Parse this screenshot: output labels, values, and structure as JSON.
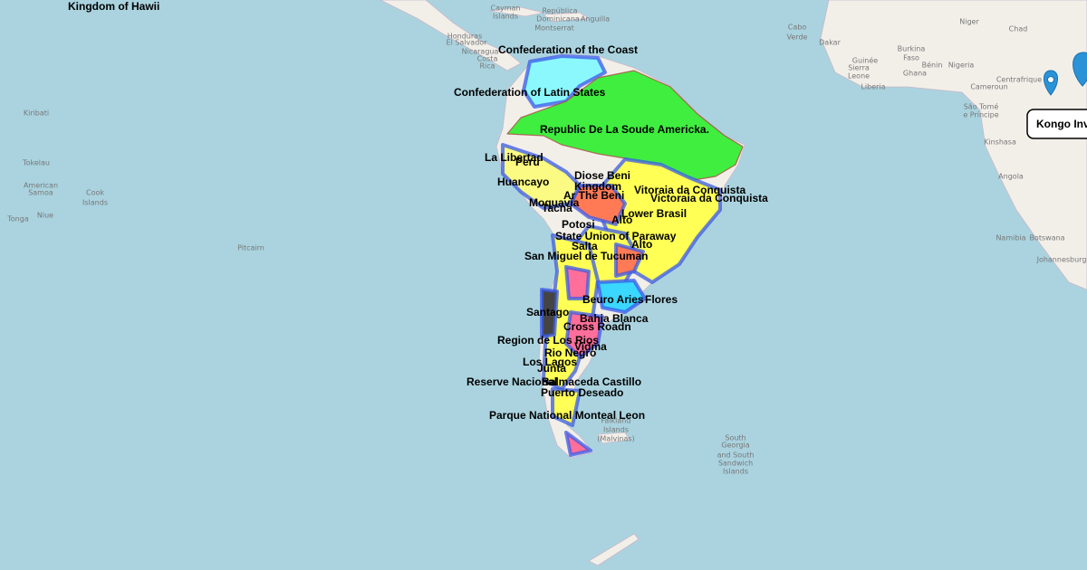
{
  "map": {
    "region_labels": [
      "Kingdom of Hawii",
      "Confederation of the Coast",
      "Confederation of Latin States",
      "Republic De La Soude Americka.",
      "La Libertad",
      "Peru",
      "Huancayo",
      "Diose Beni",
      "Kingdom",
      "Ar The Beni",
      "Moquavia",
      "Tacna",
      "Vitoraia da Conquista",
      "Victoraia da Conquista",
      "Lower Brasil",
      "Alto",
      "Potosi",
      "State Union of Paraway",
      "Alto",
      "Salta",
      "San Miguel de Tucuman",
      "Beuro Aries",
      "Flores",
      "Santago",
      "Bahia Blanca",
      "Cross Roadn",
      "Region de Los Rios",
      "Vidma",
      "Rio Negro",
      "Los Lagos",
      "Junta",
      "Reserve Nacional",
      "Balmaceda Castillo",
      "Puerto Deseado",
      "Parque National Monteal Leon"
    ],
    "basemap_labels": [
      "Kiribati",
      "Tokelau",
      "American",
      "Samoa",
      "Cook",
      "Islands",
      "Niue",
      "Tonga",
      "Pitcairn",
      "Cayman",
      "Islands",
      "Honduras",
      "El Salvador",
      "Nicaragua",
      "Costa",
      "Rica",
      "Montserrat",
      "Anguilla",
      "República",
      "Dominicana",
      "Cabo",
      "Verde",
      "Dakar",
      "Niger",
      "Chad",
      "Burkina",
      "Faso",
      "Guinée",
      "Sierra",
      "Leone",
      "Liberia",
      "Ghana",
      "Bénin",
      "Nigeria",
      "Cameroun",
      "Centrafrique",
      "São Tomé",
      "e Príncipe",
      "Kinshasa",
      "Angola",
      "Namibia",
      "Botswana",
      "Johannesburg",
      "Falkland",
      "Islands",
      "(Malvinas)",
      "South",
      "Georgia",
      "and South",
      "Sandwich",
      "Islands"
    ],
    "popup": {
      "title": "Kongo Inv"
    }
  }
}
